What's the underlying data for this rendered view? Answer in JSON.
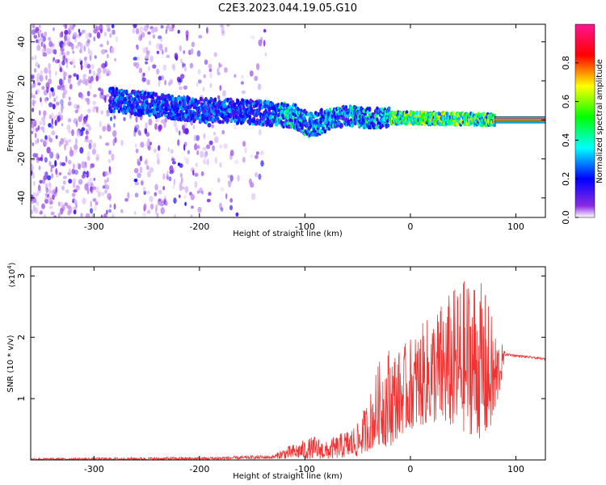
{
  "title": "C2E3.2023.044.19.05.G10",
  "chart_data": [
    {
      "type": "heatmap",
      "xlabel": "Height of straight line (km)",
      "ylabel": "Frequency (Hz)",
      "xlim": [
        -360,
        128
      ],
      "ylim": [
        -50,
        49
      ],
      "x_ticks": [
        -300,
        -200,
        -100,
        0,
        100
      ],
      "y_ticks": [
        -40,
        -20,
        0,
        20,
        40
      ],
      "colorbar": {
        "label": "Normalized spectral amplitude",
        "range": [
          0,
          1
        ],
        "ticks": [
          "0.0",
          "0.2",
          "0.4",
          "0.6",
          "0.8"
        ],
        "colormap": [
          "#ffffff",
          "#8a2be2",
          "#0000ff",
          "#00ffff",
          "#00ff00",
          "#ffff00",
          "#ff0000",
          "#ff1493"
        ]
      },
      "ridge": {
        "x": [
          -280,
          -250,
          -200,
          -150,
          -130,
          -110,
          -95,
          -80,
          -60,
          -40,
          -20,
          0,
          40,
          80,
          128
        ],
        "y": [
          10,
          8,
          5,
          4,
          3,
          2,
          -3,
          0,
          2,
          1,
          1,
          1,
          0.5,
          0,
          0
        ]
      }
    },
    {
      "type": "line",
      "xlabel": "Height of straight line (km)",
      "ylabel": "SNR (10 * v/v)",
      "multiplier": "(x10",
      "multiplier_exp": "4",
      "multiplier_close": ")",
      "xlim": [
        -360,
        128
      ],
      "ylim": [
        0,
        3.15
      ],
      "x_ticks": [
        -300,
        -200,
        -100,
        0,
        100
      ],
      "y_ticks": [
        1,
        2,
        3
      ],
      "series": [
        {
          "color": "#ee3333",
          "envelope": {
            "x": [
              -360,
              -200,
              -130,
              -120,
              -90,
              -80,
              -50,
              -40,
              -30,
              -20,
              -10,
              0,
              20,
              40,
              60,
              70,
              80,
              90,
              100,
              128
            ],
            "low": [
              0,
              0,
              0.02,
              0.02,
              0.02,
              0.01,
              0.05,
              0.15,
              0.25,
              0.2,
              0.4,
              0.5,
              0.6,
              0.5,
              0.4,
              0.3,
              0.6,
              1.7,
              1.68,
              1.63
            ],
            "high": [
              0.03,
              0.05,
              0.08,
              0.2,
              0.4,
              0.3,
              0.6,
              1.0,
              1.6,
              1.9,
              1.8,
              2.0,
              2.4,
              2.8,
              3.1,
              2.8,
              2.2,
              1.75,
              1.72,
              1.66
            ]
          }
        }
      ]
    }
  ]
}
